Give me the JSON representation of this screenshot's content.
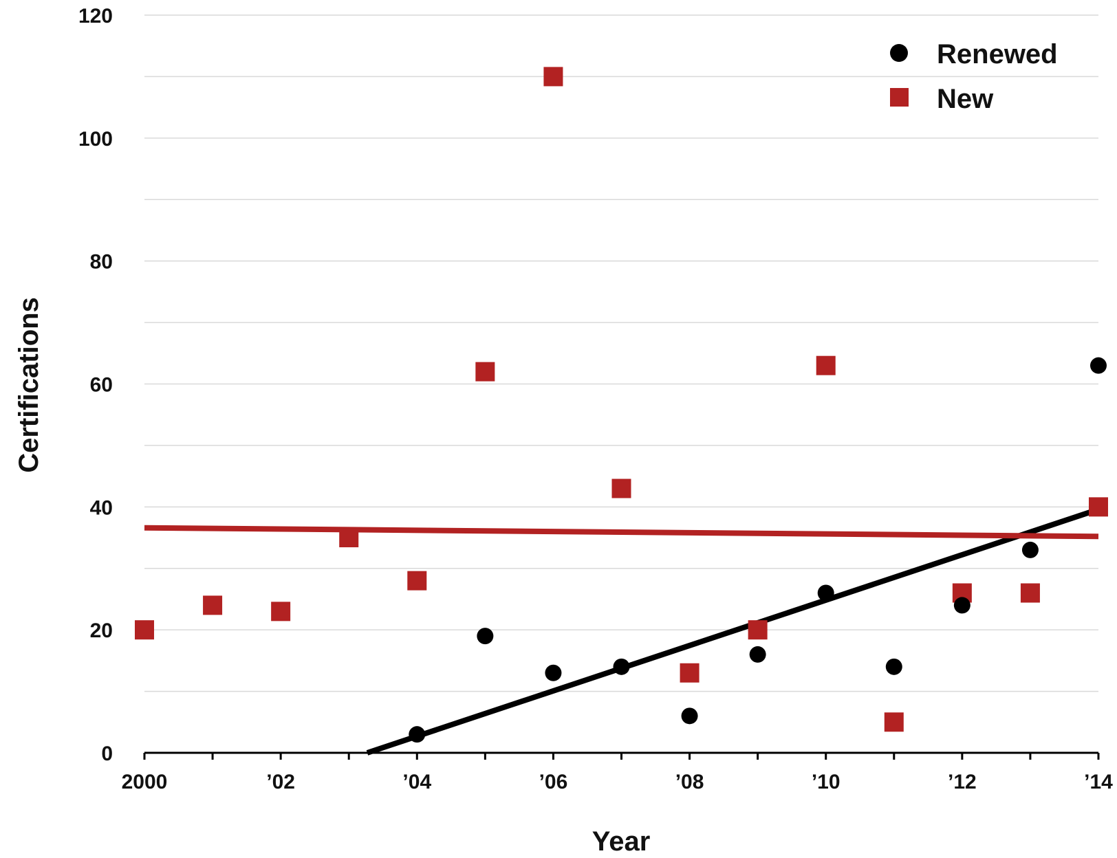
{
  "chart_data": {
    "type": "scatter",
    "title": "",
    "xlabel": "Year",
    "ylabel": "Certifications",
    "xlim": [
      2000,
      2014
    ],
    "ylim": [
      0,
      120
    ],
    "y_ticks": [
      0,
      20,
      40,
      60,
      80,
      100,
      120
    ],
    "x_ticks": [
      {
        "value": 2000,
        "label": "2000"
      },
      {
        "value": 2002,
        "label": "’02"
      },
      {
        "value": 2004,
        "label": "’04"
      },
      {
        "value": 2006,
        "label": "’06"
      },
      {
        "value": 2008,
        "label": "’08"
      },
      {
        "value": 2010,
        "label": "’10"
      },
      {
        "value": 2012,
        "label": "’12"
      },
      {
        "value": 2014,
        "label": "’14"
      }
    ],
    "grid": true,
    "legend_position": "top-right",
    "series": [
      {
        "name": "Renewed",
        "marker": "circle",
        "color": "#000000",
        "points": [
          {
            "x": 2004,
            "y": 3
          },
          {
            "x": 2005,
            "y": 19
          },
          {
            "x": 2006,
            "y": 13
          },
          {
            "x": 2007,
            "y": 14
          },
          {
            "x": 2008,
            "y": 6
          },
          {
            "x": 2009,
            "y": 16
          },
          {
            "x": 2010,
            "y": 26
          },
          {
            "x": 2011,
            "y": 14
          },
          {
            "x": 2012,
            "y": 24
          },
          {
            "x": 2013,
            "y": 33
          },
          {
            "x": 2014,
            "y": 63
          }
        ],
        "trend": {
          "x0": 2003.27,
          "y0": 0,
          "x1": 2014,
          "y1": 39.6
        }
      },
      {
        "name": "New",
        "marker": "square",
        "color": "#b22222",
        "points": [
          {
            "x": 2000,
            "y": 20
          },
          {
            "x": 2001,
            "y": 24
          },
          {
            "x": 2002,
            "y": 23
          },
          {
            "x": 2003,
            "y": 35
          },
          {
            "x": 2004,
            "y": 28
          },
          {
            "x": 2005,
            "y": 62
          },
          {
            "x": 2006,
            "y": 110
          },
          {
            "x": 2007,
            "y": 43
          },
          {
            "x": 2008,
            "y": 13
          },
          {
            "x": 2009,
            "y": 20
          },
          {
            "x": 2010,
            "y": 63
          },
          {
            "x": 2011,
            "y": 5
          },
          {
            "x": 2012,
            "y": 26
          },
          {
            "x": 2013,
            "y": 26
          },
          {
            "x": 2014,
            "y": 40
          }
        ],
        "trend": {
          "x0": 2000,
          "y0": 36.6,
          "x1": 2014,
          "y1": 35.2
        }
      }
    ]
  }
}
